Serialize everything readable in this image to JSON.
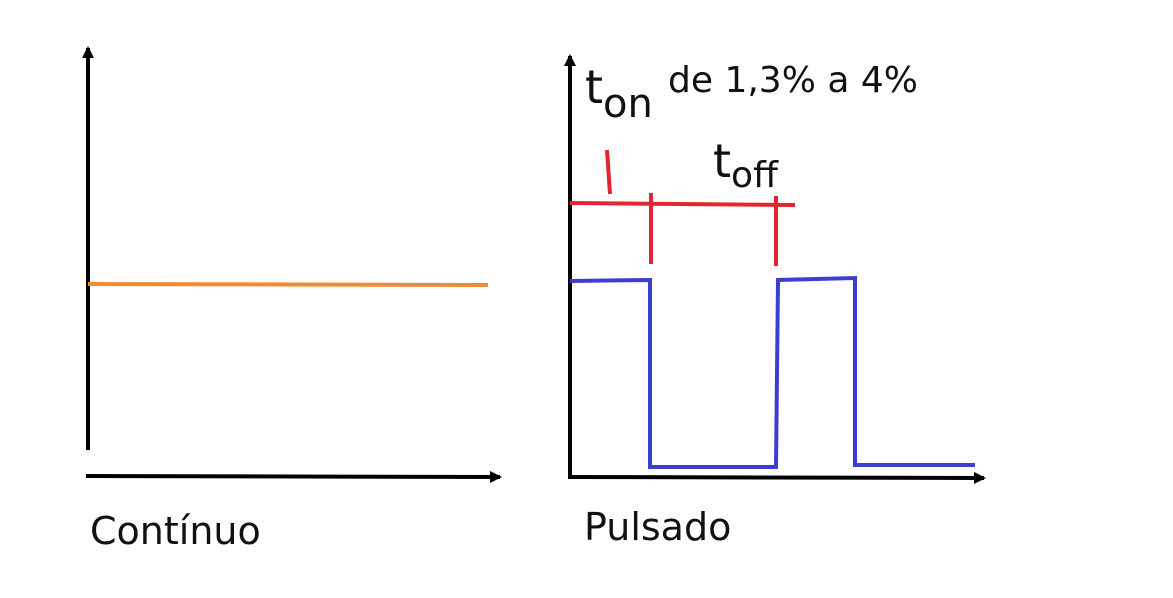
{
  "continuous_graph": {
    "caption": "Contínuo",
    "line_color": "#f08a34"
  },
  "pulsed_graph": {
    "caption": "Pulsado",
    "ton_letter": "t",
    "ton_subscript": "on",
    "duty_range_text": "de 1,3% a 4%",
    "toff_letter": "t",
    "toff_subscript": "off",
    "signal_color": "#3b3fd0",
    "marker_color": "#e0262e"
  },
  "axis_color": "#000000"
}
